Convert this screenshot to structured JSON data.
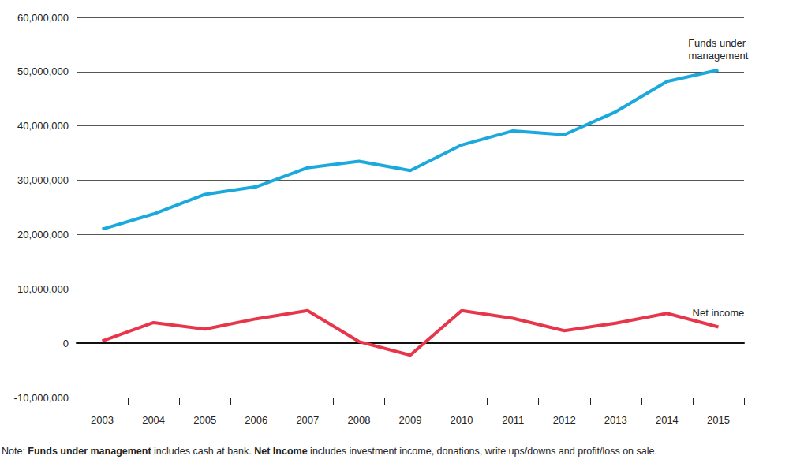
{
  "chart_data": {
    "type": "line",
    "categories": [
      "2003",
      "2004",
      "2005",
      "2006",
      "2007",
      "2008",
      "2009",
      "2010",
      "2011",
      "2012",
      "2013",
      "2014",
      "2015"
    ],
    "series": [
      {
        "name": "Funds under management",
        "color": "#1ba9dd",
        "values": [
          21000000,
          23800000,
          27400000,
          28800000,
          32300000,
          33500000,
          31800000,
          36500000,
          39100000,
          38400000,
          42600000,
          48200000,
          50300000
        ]
      },
      {
        "name": "Net income",
        "color": "#e8354a",
        "values": [
          400000,
          3800000,
          2600000,
          4500000,
          6000000,
          300000,
          -2200000,
          6000000,
          4600000,
          2300000,
          3700000,
          5500000,
          3000000
        ]
      }
    ],
    "ylim": [
      -10000000,
      60000000
    ],
    "yticks": [
      {
        "value": -10000000,
        "label": "-10,000,000"
      },
      {
        "value": 0,
        "label": "0"
      },
      {
        "value": 10000000,
        "label": "10,000,000"
      },
      {
        "value": 20000000,
        "label": "20,000,000"
      },
      {
        "value": 30000000,
        "label": "30,000,000"
      },
      {
        "value": 40000000,
        "label": "40,000,000"
      },
      {
        "value": 50000000,
        "label": "50,000,000"
      },
      {
        "value": 60000000,
        "label": "60,000,000"
      }
    ],
    "grid": true,
    "note": [
      "Note: ",
      "Funds under management",
      " includes cash at bank. ",
      "Net Income",
      " includes investment income, donations, write ups/downs and profit/loss on sale."
    ]
  }
}
